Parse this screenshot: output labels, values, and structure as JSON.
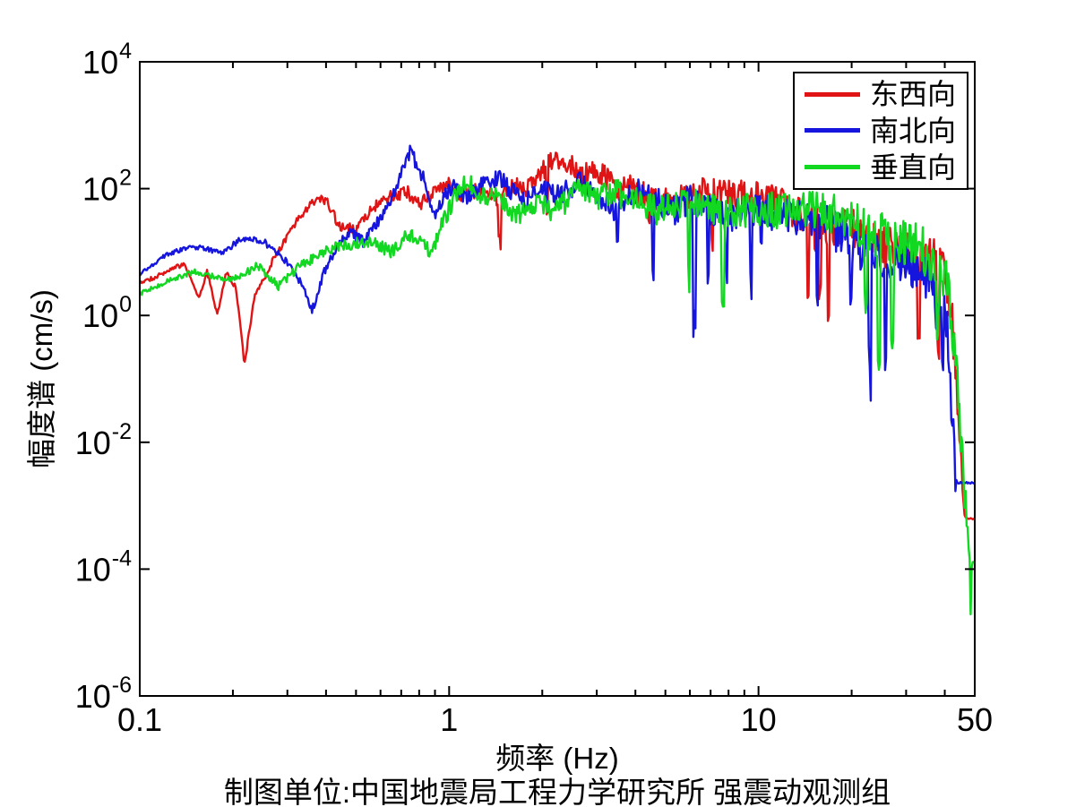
{
  "figure": {
    "background": "#ffffff",
    "caption": "制图单位:中国地震局工程力学研究所 强震动观测组"
  },
  "chart_data": {
    "type": "line",
    "title": "",
    "xlabel": "频率 (Hz)",
    "ylabel": "幅度谱 (cm/s)",
    "xscale": "log",
    "yscale": "log",
    "xlim": [
      0.1,
      50
    ],
    "ylim": [
      1e-06,
      10000.0
    ],
    "grid": false,
    "legend_position": "top-right",
    "x_major_ticks": [
      {
        "value": 0.1,
        "label": "0.1"
      },
      {
        "value": 1,
        "label": "1"
      },
      {
        "value": 10,
        "label": "10"
      },
      {
        "value": 50,
        "label": "50"
      }
    ],
    "x_minor_ticks": [
      0.2,
      0.3,
      0.4,
      0.5,
      0.6,
      0.7,
      0.8,
      0.9,
      2,
      3,
      4,
      5,
      6,
      7,
      8,
      9,
      20,
      30,
      40
    ],
    "y_major_ticks": [
      {
        "base": "10",
        "exp": "4"
      },
      {
        "base": "10",
        "exp": "2"
      },
      {
        "base": "10",
        "exp": "0"
      },
      {
        "base": "10",
        "exp": "-2"
      },
      {
        "base": "10",
        "exp": "-4"
      },
      {
        "base": "10",
        "exp": "-6"
      }
    ],
    "series": [
      {
        "id": "east-west",
        "name": "东西向",
        "color": "#e01414",
        "anchor_points_hz_log10amp": [
          [
            0.1,
            0.53
          ],
          [
            0.125,
            0.72
          ],
          [
            0.14,
            0.75
          ],
          [
            0.155,
            0.15
          ],
          [
            0.165,
            0.6
          ],
          [
            0.178,
            -0.07
          ],
          [
            0.19,
            0.65
          ],
          [
            0.205,
            0.45
          ],
          [
            0.218,
            -0.75
          ],
          [
            0.235,
            0.35
          ],
          [
            0.27,
            0.9
          ],
          [
            0.31,
            1.4
          ],
          [
            0.36,
            1.85
          ],
          [
            0.4,
            1.9
          ],
          [
            0.44,
            1.45
          ],
          [
            0.5,
            1.3
          ],
          [
            0.58,
            1.65
          ],
          [
            0.66,
            1.85
          ],
          [
            0.73,
            1.95
          ],
          [
            0.8,
            1.75
          ],
          [
            0.9,
            1.95
          ],
          [
            1.0,
            2.05
          ],
          [
            1.1,
            1.9
          ],
          [
            1.25,
            2.1
          ],
          [
            1.4,
            1.95
          ],
          [
            1.6,
            2.05
          ],
          [
            1.8,
            2.0
          ],
          [
            2.1,
            2.35
          ],
          [
            2.45,
            2.4
          ],
          [
            2.7,
            2.15
          ],
          [
            3.0,
            2.25
          ],
          [
            3.4,
            1.95
          ],
          [
            3.9,
            2.05
          ],
          [
            4.5,
            1.9
          ],
          [
            5.2,
            1.85
          ],
          [
            6.0,
            1.9
          ],
          [
            7.0,
            1.95
          ],
          [
            8.0,
            1.9
          ],
          [
            9.0,
            1.85
          ],
          [
            10.5,
            1.75
          ],
          [
            12,
            1.65
          ],
          [
            14,
            1.6
          ],
          [
            16.5,
            1.5
          ],
          [
            19,
            1.45
          ],
          [
            22,
            1.3
          ],
          [
            26,
            1.15
          ],
          [
            30,
            1.05
          ],
          [
            34,
            0.95
          ],
          [
            38,
            0.8
          ],
          [
            40.5,
            0.5
          ],
          [
            42,
            0.1
          ],
          [
            43,
            -0.7
          ],
          [
            44,
            -1.6
          ],
          [
            45,
            -2.5
          ],
          [
            45.8,
            -3.0
          ],
          [
            46.5,
            -3.2
          ],
          [
            50,
            -3.2
          ]
        ],
        "texture": {
          "seed": 20417,
          "white_low": 0.03,
          "white_high": 0.38,
          "wiggle": 0.1,
          "notch_prob": 0.04,
          "notch_depth": [
            0.4,
            3.0
          ],
          "tail_hz": 46
        }
      },
      {
        "id": "north-south",
        "name": "南北向",
        "color": "#1515dd",
        "anchor_points_hz_log10amp": [
          [
            0.1,
            0.74
          ],
          [
            0.12,
            0.95
          ],
          [
            0.14,
            1.05
          ],
          [
            0.16,
            1.08
          ],
          [
            0.185,
            0.95
          ],
          [
            0.21,
            1.1
          ],
          [
            0.25,
            1.1
          ],
          [
            0.29,
            0.95
          ],
          [
            0.33,
            0.6
          ],
          [
            0.36,
            0.13
          ],
          [
            0.4,
            0.8
          ],
          [
            0.44,
            1.15
          ],
          [
            0.48,
            1.35
          ],
          [
            0.53,
            1.2
          ],
          [
            0.58,
            1.5
          ],
          [
            0.64,
            1.7
          ],
          [
            0.7,
            2.2
          ],
          [
            0.75,
            2.5
          ],
          [
            0.79,
            2.25
          ],
          [
            0.84,
            2.0
          ],
          [
            0.9,
            1.5
          ],
          [
            0.97,
            1.9
          ],
          [
            1.05,
            2.05
          ],
          [
            1.15,
            1.85
          ],
          [
            1.3,
            2.1
          ],
          [
            1.45,
            2.2
          ],
          [
            1.6,
            2.0
          ],
          [
            1.75,
            1.85
          ],
          [
            2.0,
            2.05
          ],
          [
            2.3,
            1.9
          ],
          [
            2.6,
            2.05
          ],
          [
            3.0,
            1.85
          ],
          [
            3.5,
            1.6
          ],
          [
            4.0,
            1.95
          ],
          [
            4.6,
            1.8
          ],
          [
            5.2,
            1.6
          ],
          [
            6.0,
            1.9
          ],
          [
            7.0,
            1.75
          ],
          [
            8.0,
            1.6
          ],
          [
            9.5,
            1.65
          ],
          [
            11,
            1.6
          ],
          [
            13,
            1.55
          ],
          [
            15.5,
            1.4
          ],
          [
            18,
            1.25
          ],
          [
            21,
            1.1
          ],
          [
            25,
            1.0
          ],
          [
            29,
            0.9
          ],
          [
            33,
            0.75
          ],
          [
            36.5,
            0.55
          ],
          [
            39,
            0.3
          ],
          [
            40.8,
            -0.3
          ],
          [
            41.8,
            -1.1
          ],
          [
            42.6,
            -1.9
          ],
          [
            43.3,
            -2.5
          ],
          [
            43.8,
            -2.64
          ],
          [
            50,
            -2.64
          ]
        ],
        "texture": {
          "seed": 8811,
          "white_low": 0.03,
          "white_high": 0.38,
          "wiggle": 0.1,
          "notch_prob": 0.045,
          "notch_depth": [
            0.4,
            3.2
          ],
          "tail_hz": 43.6
        }
      },
      {
        "id": "vertical",
        "name": "垂直向",
        "color": "#12d822",
        "anchor_points_hz_log10amp": [
          [
            0.1,
            0.43
          ],
          [
            0.13,
            0.58
          ],
          [
            0.15,
            0.68
          ],
          [
            0.17,
            0.62
          ],
          [
            0.19,
            0.55
          ],
          [
            0.215,
            0.55
          ],
          [
            0.24,
            0.72
          ],
          [
            0.28,
            0.45
          ],
          [
            0.33,
            0.85
          ],
          [
            0.4,
            1.05
          ],
          [
            0.48,
            1.15
          ],
          [
            0.57,
            1.2
          ],
          [
            0.65,
            1.0
          ],
          [
            0.73,
            1.2
          ],
          [
            0.8,
            1.1
          ],
          [
            0.88,
            0.9
          ],
          [
            0.95,
            1.4
          ],
          [
            1.05,
            1.9
          ],
          [
            1.15,
            2.15
          ],
          [
            1.28,
            1.9
          ],
          [
            1.45,
            1.85
          ],
          [
            1.65,
            1.6
          ],
          [
            1.9,
            1.85
          ],
          [
            2.2,
            1.7
          ],
          [
            2.6,
            1.9
          ],
          [
            3.0,
            1.8
          ],
          [
            3.5,
            1.9
          ],
          [
            4.1,
            1.75
          ],
          [
            4.8,
            1.6
          ],
          [
            5.6,
            1.8
          ],
          [
            6.5,
            1.9
          ],
          [
            7.5,
            1.75
          ],
          [
            8.6,
            1.6
          ],
          [
            10,
            1.65
          ],
          [
            12,
            1.6
          ],
          [
            14,
            1.6
          ],
          [
            16,
            1.55
          ],
          [
            19,
            1.5
          ],
          [
            22,
            1.4
          ],
          [
            26,
            1.3
          ],
          [
            30,
            1.15
          ],
          [
            33.5,
            1.05
          ],
          [
            37,
            0.9
          ],
          [
            40,
            0.6
          ],
          [
            41.5,
            0.25
          ],
          [
            42.8,
            -0.3
          ],
          [
            44,
            -1.1
          ],
          [
            45.2,
            -2.0
          ],
          [
            46.3,
            -2.8
          ],
          [
            47.3,
            -3.5
          ],
          [
            48.2,
            -3.85
          ],
          [
            48.55,
            -4.85
          ],
          [
            48.9,
            -3.9
          ],
          [
            50,
            -3.9
          ]
        ],
        "texture": {
          "seed": 5150,
          "white_low": 0.035,
          "white_high": 0.4,
          "wiggle": 0.09,
          "notch_prob": 0.04,
          "notch_depth": [
            0.4,
            2.8
          ],
          "tail_hz": 47.6
        }
      }
    ]
  }
}
